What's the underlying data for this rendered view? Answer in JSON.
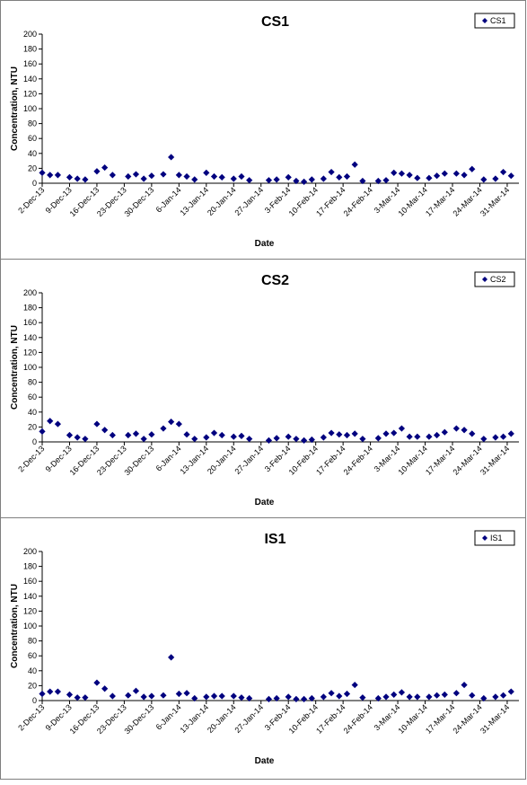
{
  "chart_data": [
    {
      "type": "scatter",
      "title": "CS1",
      "xlabel": "Date",
      "ylabel": "Concentration, NTU",
      "ylim": [
        0,
        200
      ],
      "yticks": [
        0,
        20,
        40,
        60,
        80,
        100,
        120,
        140,
        160,
        180,
        200
      ],
      "xtick_labels": [
        "2-Dec-13",
        "9-Dec-13",
        "16-Dec-13",
        "23-Dec-13",
        "30-Dec-13",
        "6-Jan-14",
        "13-Jan-14",
        "20-Jan-14",
        "27-Jan-14",
        "3-Feb-14",
        "10-Feb-14",
        "17-Feb-14",
        "24-Feb-14",
        "3-Mar-14",
        "10-Mar-14",
        "17-Mar-14",
        "24-Mar-14",
        "31-Mar-14"
      ],
      "xlim": [
        "2013-12-02",
        "2014-04-03"
      ],
      "legend": "top-right",
      "grid": false,
      "color": "#00007f",
      "series": [
        {
          "name": "CS1",
          "points": [
            [
              "2013-12-02",
              14
            ],
            [
              "2013-12-04",
              11
            ],
            [
              "2013-12-06",
              11
            ],
            [
              "2013-12-09",
              8
            ],
            [
              "2013-12-11",
              6
            ],
            [
              "2013-12-13",
              5
            ],
            [
              "2013-12-16",
              16
            ],
            [
              "2013-12-18",
              21
            ],
            [
              "2013-12-20",
              11
            ],
            [
              "2013-12-24",
              9
            ],
            [
              "2013-12-26",
              12
            ],
            [
              "2013-12-28",
              6
            ],
            [
              "2013-12-30",
              10
            ],
            [
              "2014-01-02",
              12
            ],
            [
              "2014-01-04",
              35
            ],
            [
              "2014-01-06",
              11
            ],
            [
              "2014-01-08",
              9
            ],
            [
              "2014-01-10",
              5
            ],
            [
              "2014-01-13",
              14
            ],
            [
              "2014-01-15",
              9
            ],
            [
              "2014-01-17",
              8
            ],
            [
              "2014-01-20",
              6
            ],
            [
              "2014-01-22",
              9
            ],
            [
              "2014-01-24",
              4
            ],
            [
              "2014-01-29",
              4
            ],
            [
              "2014-01-31",
              5
            ],
            [
              "2014-02-03",
              8
            ],
            [
              "2014-02-05",
              3
            ],
            [
              "2014-02-07",
              2
            ],
            [
              "2014-02-09",
              5
            ],
            [
              "2014-02-12",
              6
            ],
            [
              "2014-02-14",
              15
            ],
            [
              "2014-02-16",
              8
            ],
            [
              "2014-02-18",
              9
            ],
            [
              "2014-02-20",
              25
            ],
            [
              "2014-02-22",
              3
            ],
            [
              "2014-02-26",
              3
            ],
            [
              "2014-02-28",
              4
            ],
            [
              "2014-03-02",
              14
            ],
            [
              "2014-03-04",
              13
            ],
            [
              "2014-03-06",
              11
            ],
            [
              "2014-03-08",
              7
            ],
            [
              "2014-03-11",
              7
            ],
            [
              "2014-03-13",
              10
            ],
            [
              "2014-03-15",
              13
            ],
            [
              "2014-03-18",
              13
            ],
            [
              "2014-03-20",
              11
            ],
            [
              "2014-03-22",
              19
            ],
            [
              "2014-03-25",
              5
            ],
            [
              "2014-03-28",
              6
            ],
            [
              "2014-03-30",
              15
            ],
            [
              "2014-04-01",
              10
            ]
          ]
        }
      ]
    },
    {
      "type": "scatter",
      "title": "CS2",
      "xlabel": "Date",
      "ylabel": "Concentration, NTU",
      "ylim": [
        0,
        200
      ],
      "yticks": [
        0,
        20,
        40,
        60,
        80,
        100,
        120,
        140,
        160,
        180,
        200
      ],
      "xtick_labels": [
        "2-Dec-13",
        "9-Dec-13",
        "16-Dec-13",
        "23-Dec-13",
        "30-Dec-13",
        "6-Jan-14",
        "13-Jan-14",
        "20-Jan-14",
        "27-Jan-14",
        "3-Feb-14",
        "10-Feb-14",
        "17-Feb-14",
        "24-Feb-14",
        "3-Mar-14",
        "10-Mar-14",
        "17-Mar-14",
        "24-Mar-14",
        "31-Mar-14"
      ],
      "xlim": [
        "2013-12-02",
        "2014-04-03"
      ],
      "legend": "top-right",
      "grid": false,
      "color": "#00007f",
      "series": [
        {
          "name": "CS2",
          "points": [
            [
              "2013-12-02",
              14
            ],
            [
              "2013-12-04",
              28
            ],
            [
              "2013-12-06",
              24
            ],
            [
              "2013-12-09",
              9
            ],
            [
              "2013-12-11",
              6
            ],
            [
              "2013-12-13",
              4
            ],
            [
              "2013-12-16",
              24
            ],
            [
              "2013-12-18",
              16
            ],
            [
              "2013-12-20",
              9
            ],
            [
              "2013-12-24",
              9
            ],
            [
              "2013-12-26",
              11
            ],
            [
              "2013-12-28",
              4
            ],
            [
              "2013-12-30",
              10
            ],
            [
              "2014-01-02",
              18
            ],
            [
              "2014-01-04",
              27
            ],
            [
              "2014-01-06",
              24
            ],
            [
              "2014-01-08",
              10
            ],
            [
              "2014-01-10",
              4
            ],
            [
              "2014-01-13",
              6
            ],
            [
              "2014-01-15",
              12
            ],
            [
              "2014-01-17",
              9
            ],
            [
              "2014-01-20",
              7
            ],
            [
              "2014-01-22",
              8
            ],
            [
              "2014-01-24",
              4
            ],
            [
              "2014-01-29",
              2
            ],
            [
              "2014-01-31",
              5
            ],
            [
              "2014-02-03",
              7
            ],
            [
              "2014-02-05",
              4
            ],
            [
              "2014-02-07",
              2
            ],
            [
              "2014-02-09",
              3
            ],
            [
              "2014-02-12",
              6
            ],
            [
              "2014-02-14",
              12
            ],
            [
              "2014-02-16",
              10
            ],
            [
              "2014-02-18",
              9
            ],
            [
              "2014-02-20",
              11
            ],
            [
              "2014-02-22",
              4
            ],
            [
              "2014-02-26",
              5
            ],
            [
              "2014-02-28",
              11
            ],
            [
              "2014-03-02",
              12
            ],
            [
              "2014-03-04",
              18
            ],
            [
              "2014-03-06",
              7
            ],
            [
              "2014-03-08",
              7
            ],
            [
              "2014-03-11",
              7
            ],
            [
              "2014-03-13",
              9
            ],
            [
              "2014-03-15",
              13
            ],
            [
              "2014-03-18",
              18
            ],
            [
              "2014-03-20",
              16
            ],
            [
              "2014-03-22",
              11
            ],
            [
              "2014-03-25",
              4
            ],
            [
              "2014-03-28",
              6
            ],
            [
              "2014-03-30",
              7
            ],
            [
              "2014-04-01",
              11
            ]
          ]
        }
      ]
    },
    {
      "type": "scatter",
      "title": "IS1",
      "xlabel": "Date",
      "ylabel": "Concentration, NTU",
      "ylim": [
        0,
        200
      ],
      "yticks": [
        0,
        20,
        40,
        60,
        80,
        100,
        120,
        140,
        160,
        180,
        200
      ],
      "xtick_labels": [
        "2-Dec-13",
        "9-Dec-13",
        "16-Dec-13",
        "23-Dec-13",
        "30-Dec-13",
        "6-Jan-14",
        "13-Jan-14",
        "20-Jan-14",
        "27-Jan-14",
        "3-Feb-14",
        "10-Feb-14",
        "17-Feb-14",
        "24-Feb-14",
        "3-Mar-14",
        "10-Mar-14",
        "17-Mar-14",
        "24-Mar-14",
        "31-Mar-14"
      ],
      "xlim": [
        "2013-12-02",
        "2014-04-03"
      ],
      "legend": "top-right",
      "grid": false,
      "color": "#00007f",
      "series": [
        {
          "name": "IS1",
          "points": [
            [
              "2013-12-02",
              9
            ],
            [
              "2013-12-04",
              12
            ],
            [
              "2013-12-06",
              12
            ],
            [
              "2013-12-09",
              8
            ],
            [
              "2013-12-11",
              4
            ],
            [
              "2013-12-13",
              4
            ],
            [
              "2013-12-16",
              24
            ],
            [
              "2013-12-18",
              16
            ],
            [
              "2013-12-20",
              6
            ],
            [
              "2013-12-24",
              7
            ],
            [
              "2013-12-26",
              13
            ],
            [
              "2013-12-28",
              5
            ],
            [
              "2013-12-30",
              6
            ],
            [
              "2014-01-02",
              7
            ],
            [
              "2014-01-04",
              58
            ],
            [
              "2014-01-06",
              9
            ],
            [
              "2014-01-08",
              10
            ],
            [
              "2014-01-10",
              3
            ],
            [
              "2014-01-13",
              5
            ],
            [
              "2014-01-15",
              6
            ],
            [
              "2014-01-17",
              6
            ],
            [
              "2014-01-20",
              6
            ],
            [
              "2014-01-22",
              4
            ],
            [
              "2014-01-24",
              3
            ],
            [
              "2014-01-29",
              2
            ],
            [
              "2014-01-31",
              3
            ],
            [
              "2014-02-03",
              5
            ],
            [
              "2014-02-05",
              2
            ],
            [
              "2014-02-07",
              2
            ],
            [
              "2014-02-09",
              3
            ],
            [
              "2014-02-12",
              5
            ],
            [
              "2014-02-14",
              10
            ],
            [
              "2014-02-16",
              6
            ],
            [
              "2014-02-18",
              9
            ],
            [
              "2014-02-20",
              21
            ],
            [
              "2014-02-22",
              4
            ],
            [
              "2014-02-26",
              3
            ],
            [
              "2014-02-28",
              5
            ],
            [
              "2014-03-02",
              8
            ],
            [
              "2014-03-04",
              11
            ],
            [
              "2014-03-06",
              5
            ],
            [
              "2014-03-08",
              5
            ],
            [
              "2014-03-11",
              5
            ],
            [
              "2014-03-13",
              7
            ],
            [
              "2014-03-15",
              8
            ],
            [
              "2014-03-18",
              10
            ],
            [
              "2014-03-20",
              21
            ],
            [
              "2014-03-22",
              7
            ],
            [
              "2014-03-25",
              3
            ],
            [
              "2014-03-28",
              5
            ],
            [
              "2014-03-30",
              7
            ],
            [
              "2014-04-01",
              12
            ]
          ]
        }
      ]
    }
  ]
}
